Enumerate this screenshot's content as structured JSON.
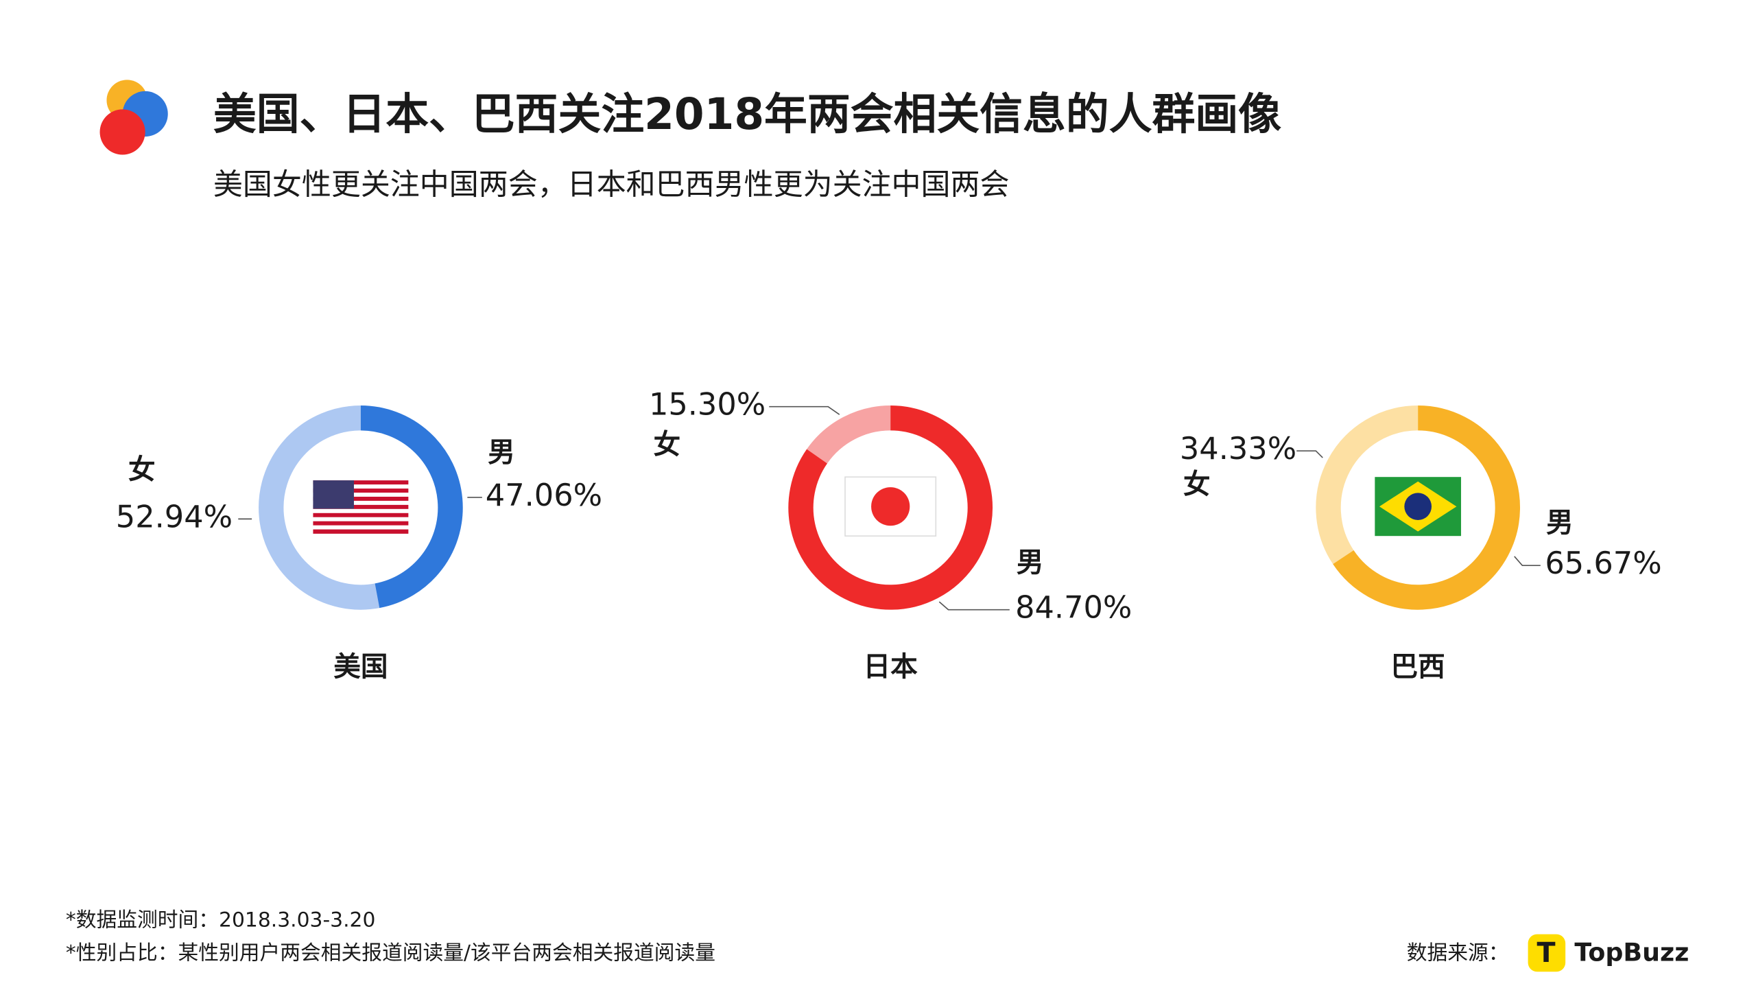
{
  "title": "美国、日本、巴西关注2018年两会相关信息的人群画像",
  "subtitle": "美国女性更关注中国两会，日本和巴西男性更为关注中国两会",
  "footnotes": [
    "*数据监测时间：2018.3.03-3.20",
    "*性别占比：某性别用户两会相关报道阅读量/该平台两会相关报道阅读量"
  ],
  "source_label": "数据来源：",
  "source_logo": "TopBuzz",
  "chart_data": [
    {
      "type": "pie",
      "title": "美国",
      "categories": [
        "女",
        "男"
      ],
      "values": [
        52.94,
        47.06
      ],
      "value_labels": [
        "52.94%",
        "47.06%"
      ],
      "colors": [
        "#adc8f2",
        "#2f78db"
      ]
    },
    {
      "type": "pie",
      "title": "日本",
      "categories": [
        "女",
        "男"
      ],
      "values": [
        15.3,
        84.7
      ],
      "value_labels": [
        "15.30%",
        "84.70%"
      ],
      "colors": [
        "#f7a3a3",
        "#ee2a2a"
      ]
    },
    {
      "type": "pie",
      "title": "巴西",
      "categories": [
        "女",
        "男"
      ],
      "values": [
        34.33,
        65.67
      ],
      "value_labels": [
        "34.33%",
        "65.67%"
      ],
      "colors": [
        "#fde0a3",
        "#f8b226"
      ]
    }
  ]
}
